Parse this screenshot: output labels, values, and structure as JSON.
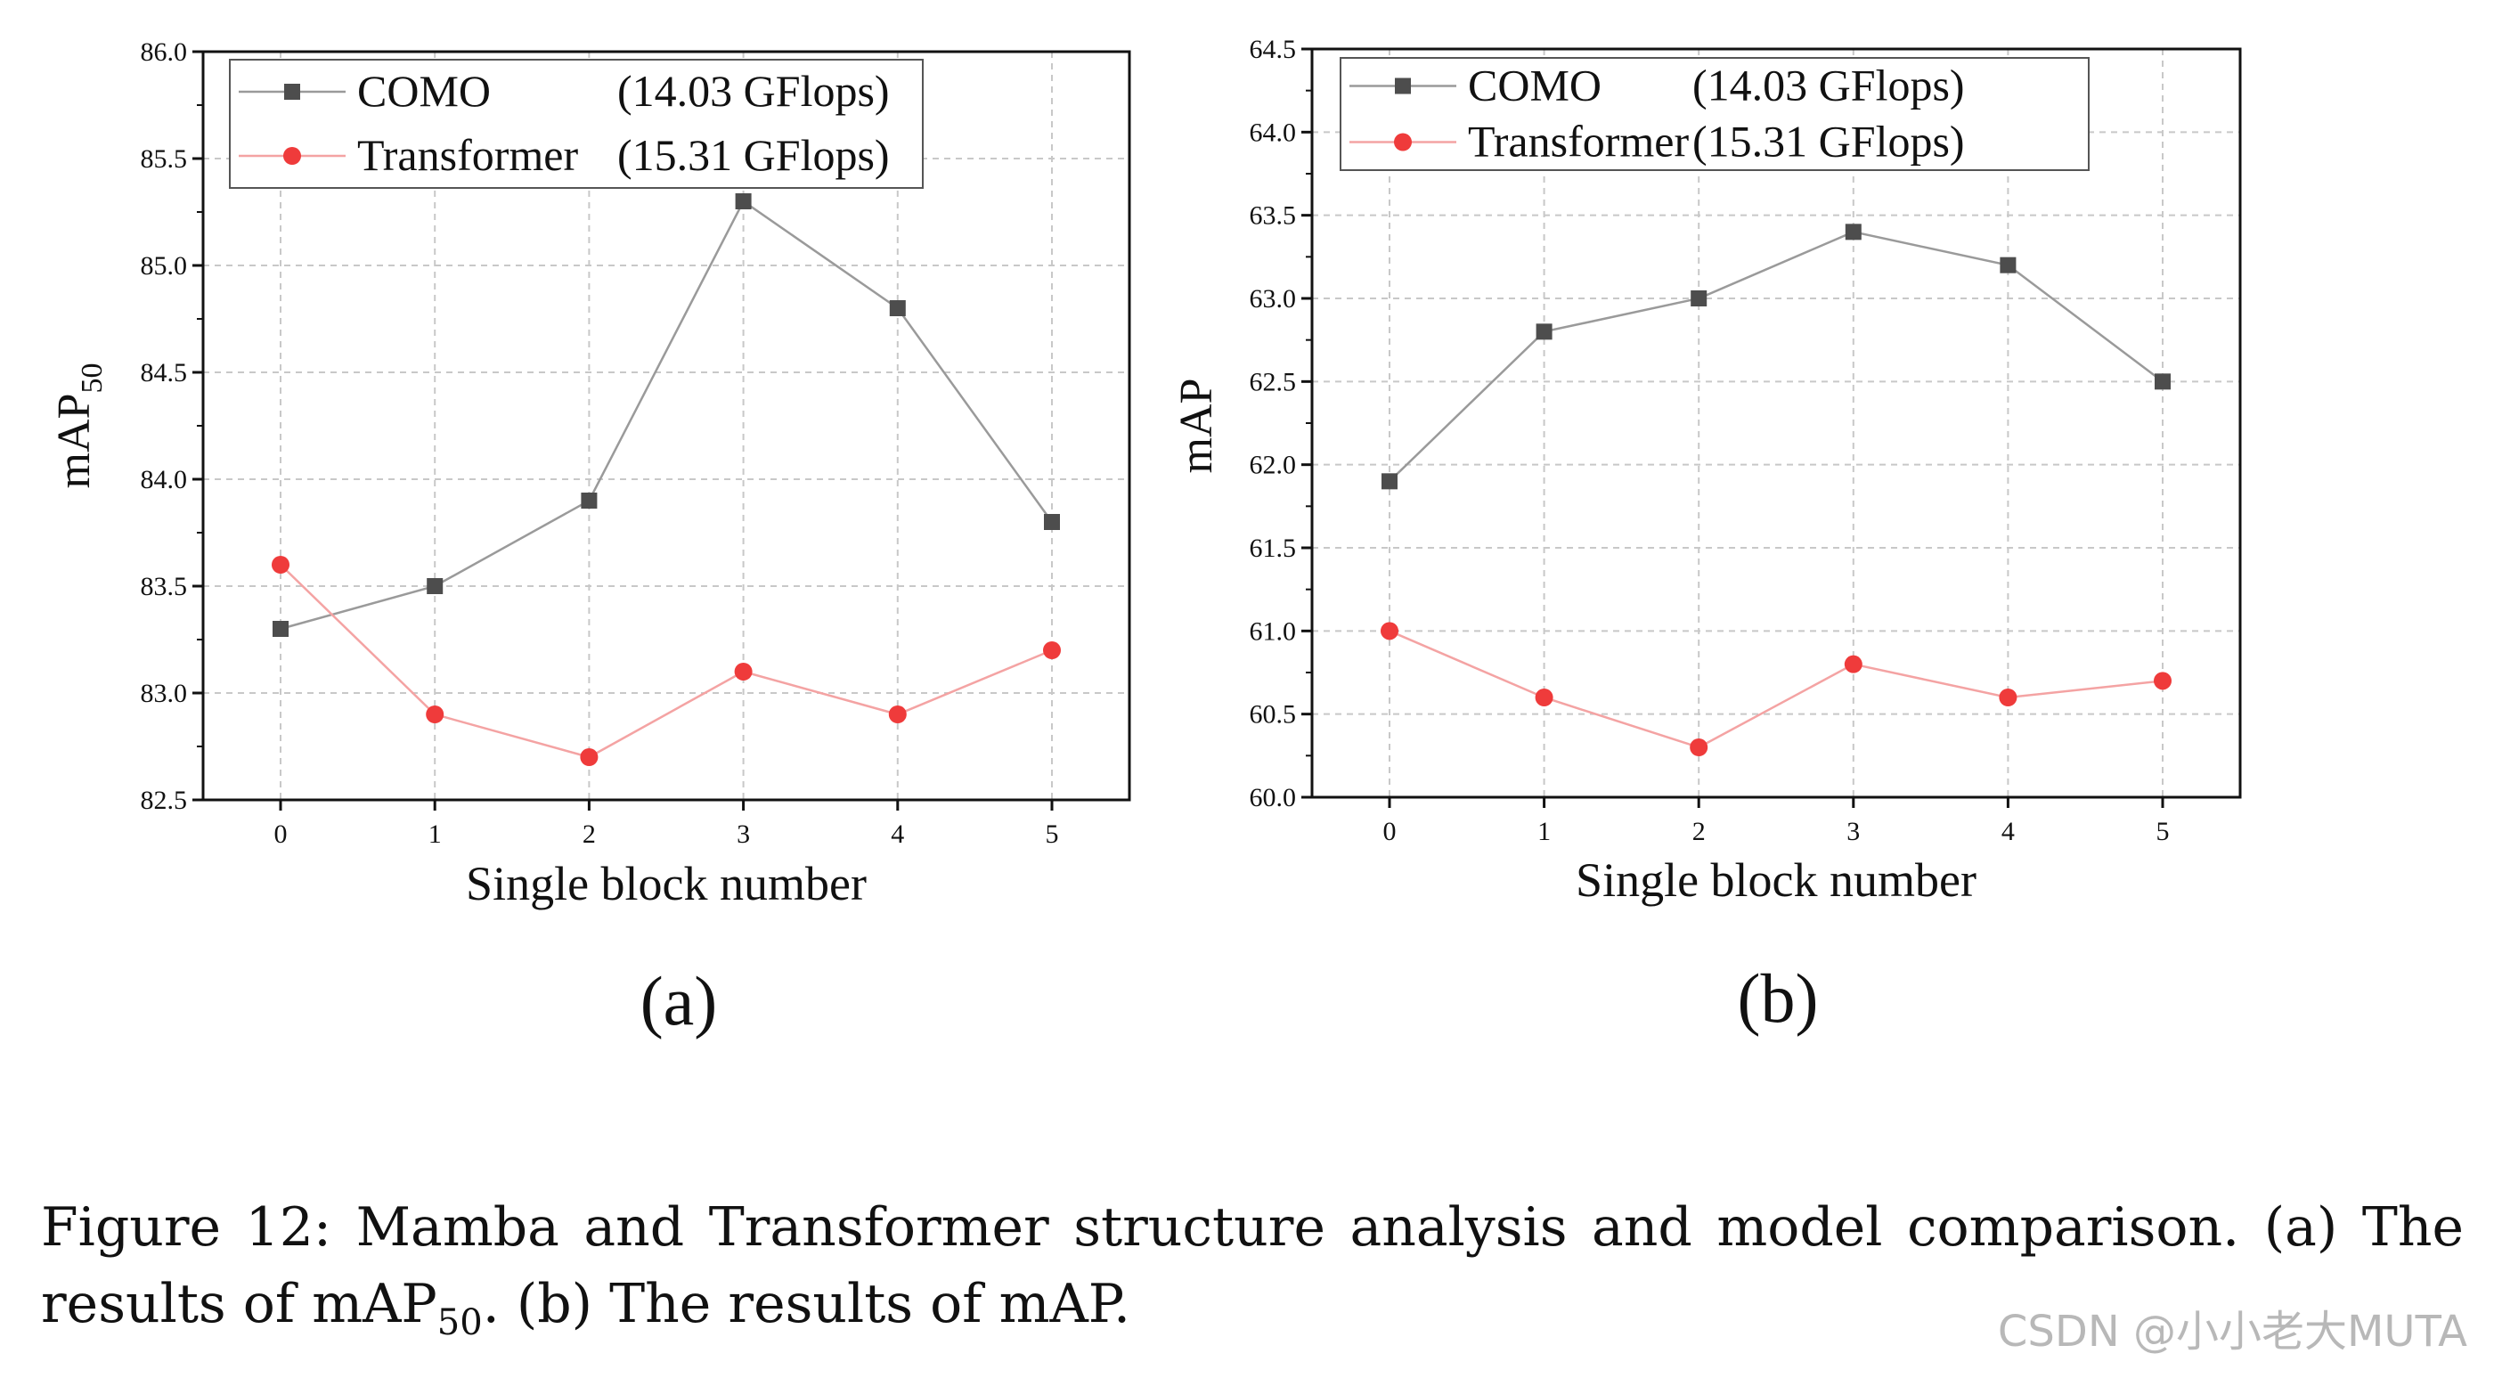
{
  "chart_data": [
    {
      "type": "line",
      "panel_label": "(a)",
      "xlabel": "Single block number",
      "ylabel": "mAP",
      "ylabel_subscript": "50",
      "x": [
        0,
        1,
        2,
        3,
        4,
        5
      ],
      "xticks": [
        "0",
        "1",
        "2",
        "3",
        "4",
        "5"
      ],
      "ylim": [
        82.5,
        86.0
      ],
      "yticks": [
        "82.5",
        "83.0",
        "83.5",
        "84.0",
        "84.5",
        "85.0",
        "85.5",
        "86.0"
      ],
      "grid": true,
      "legend_position": "top-left",
      "series": [
        {
          "name": "COMO",
          "detail": "(14.03 GFlops)",
          "marker": "square",
          "color": "#4d4d4d",
          "line_color": "#9a9a9a",
          "values": [
            83.3,
            83.5,
            83.9,
            85.3,
            84.8,
            83.8
          ]
        },
        {
          "name": "Transformer",
          "detail": "(15.31 GFlops)",
          "marker": "circle",
          "color": "#ef3b3b",
          "line_color": "#f4a3a3",
          "values": [
            83.6,
            82.9,
            82.7,
            83.1,
            82.9,
            83.2
          ]
        }
      ]
    },
    {
      "type": "line",
      "panel_label": "(b)",
      "xlabel": "Single block number",
      "ylabel": "mAP",
      "ylabel_subscript": "",
      "x": [
        0,
        1,
        2,
        3,
        4,
        5
      ],
      "xticks": [
        "0",
        "1",
        "2",
        "3",
        "4",
        "5"
      ],
      "ylim": [
        60.0,
        64.5
      ],
      "yticks": [
        "60.0",
        "60.5",
        "61.0",
        "61.5",
        "62.0",
        "62.5",
        "63.0",
        "63.5",
        "64.0",
        "64.5"
      ],
      "grid": true,
      "legend_position": "top-left",
      "series": [
        {
          "name": "COMO",
          "detail": "(14.03 GFlops)",
          "marker": "square",
          "color": "#4d4d4d",
          "line_color": "#9a9a9a",
          "values": [
            61.9,
            62.8,
            63.0,
            63.4,
            63.2,
            62.5
          ]
        },
        {
          "name": "Transformer",
          "detail": "(15.31 GFlops)",
          "marker": "circle",
          "color": "#ef3b3b",
          "line_color": "#f4a3a3",
          "values": [
            61.0,
            60.6,
            60.3,
            60.8,
            60.6,
            60.7
          ]
        }
      ]
    }
  ],
  "caption": {
    "line1": "Figure 12: Mamba and Transformer structure analysis and model comparison. (a) The",
    "line2_a": "results of mAP",
    "line2_sub": "50",
    "line2_b": ". (b) The results of mAP."
  },
  "watermark": "CSDN @小小老大MUTA"
}
